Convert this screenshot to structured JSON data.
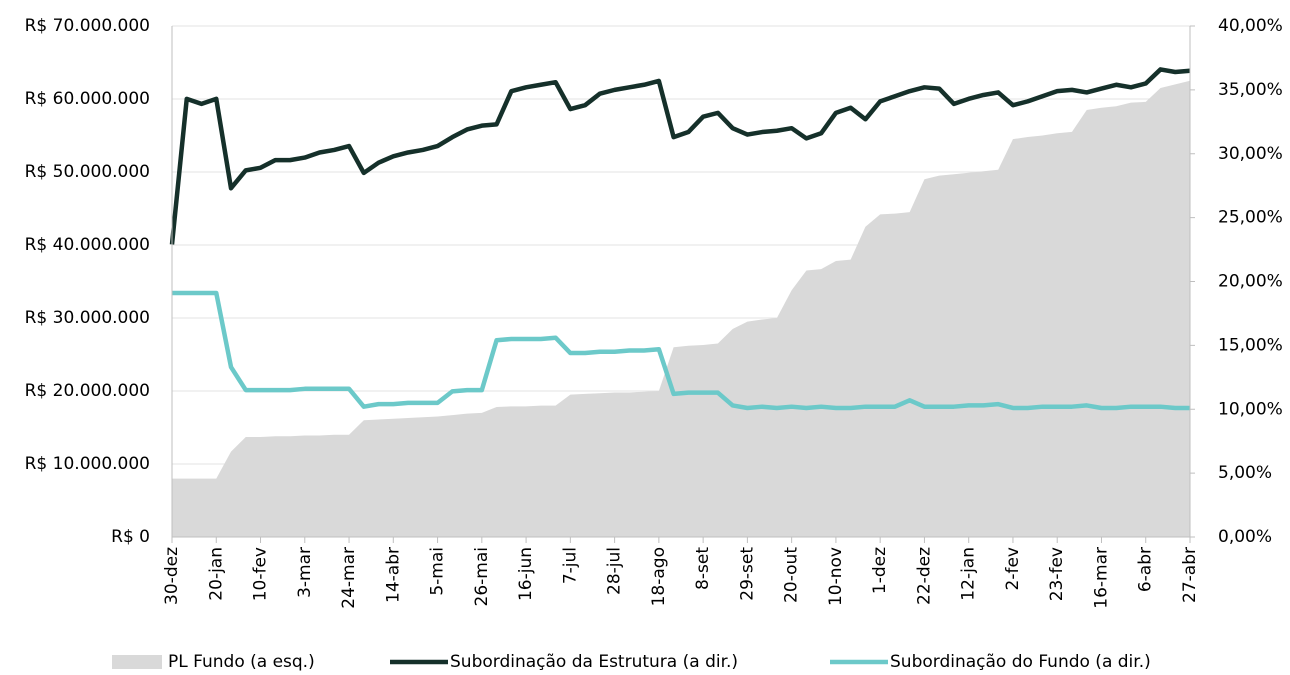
{
  "chart_data": {
    "type": "area-line",
    "categories": [
      "30-dez",
      null,
      null,
      "20-jan",
      null,
      null,
      "10-fev",
      null,
      null,
      "3-mar",
      null,
      null,
      "24-mar",
      null,
      null,
      "14-abr",
      null,
      null,
      "5-mai",
      null,
      null,
      "26-mai",
      null,
      null,
      "16-jun",
      null,
      null,
      "7-jul",
      null,
      null,
      "28-jul",
      null,
      null,
      "18-ago",
      null,
      null,
      "8-set",
      null,
      null,
      "29-set",
      null,
      null,
      "20-out",
      null,
      null,
      "10-nov",
      null,
      null,
      "1-dez",
      null,
      null,
      "22-dez",
      null,
      null,
      "12-jan",
      null,
      null,
      "2-fev",
      null,
      null,
      "23-fev",
      null,
      null,
      "16-mar",
      null,
      null,
      "6-abr",
      null,
      null,
      "27-abr"
    ],
    "series": [
      {
        "name": "PL Fundo (a esq.)",
        "color": "#d9d9d9",
        "kind": "area",
        "axis": "y",
        "values": [
          8000000,
          8000000,
          8000000,
          8000000,
          11700000,
          13700000,
          13700000,
          13800000,
          13800000,
          13900000,
          13900000,
          14000000,
          14000000,
          16000000,
          16100000,
          16200000,
          16300000,
          16400000,
          16500000,
          16700000,
          16900000,
          17000000,
          17800000,
          17900000,
          17900000,
          18000000,
          18000000,
          19500000,
          19600000,
          19700000,
          19800000,
          19800000,
          19900000,
          20000000,
          26000000,
          26200000,
          26300000,
          26500000,
          28500000,
          29500000,
          29800000,
          30000000,
          33800000,
          36500000,
          36700000,
          37800000,
          38000000,
          42500000,
          44200000,
          44300000,
          44500000,
          49000000,
          49500000,
          49700000,
          49900000,
          50100000,
          50300000,
          54500000,
          54800000,
          55000000,
          55300000,
          55500000,
          58500000,
          58800000,
          59000000,
          59500000,
          59600000,
          61500000,
          62000000,
          62500000
        ]
      },
      {
        "name": "Subordinação da Estrutura (a dir.)",
        "color": "#15302a",
        "kind": "line",
        "axis": "y2",
        "values": [
          22.9,
          34.3,
          33.9,
          34.3,
          27.3,
          28.7,
          28.9,
          29.5,
          29.5,
          29.7,
          30.1,
          30.3,
          30.6,
          28.5,
          29.3,
          29.8,
          30.1,
          30.3,
          30.6,
          31.3,
          31.9,
          32.2,
          32.3,
          34.9,
          35.2,
          35.4,
          35.6,
          33.5,
          33.8,
          34.7,
          35.0,
          35.2,
          35.4,
          35.7,
          31.3,
          31.7,
          32.9,
          33.2,
          32.0,
          31.5,
          31.7,
          31.8,
          32.0,
          31.2,
          31.6,
          33.2,
          33.6,
          32.7,
          34.1,
          34.5,
          34.9,
          35.2,
          35.1,
          33.9,
          34.3,
          34.6,
          34.8,
          33.8,
          34.1,
          34.5,
          34.9,
          35.0,
          34.8,
          35.1,
          35.4,
          35.2,
          35.5,
          36.6,
          36.4,
          36.5
        ]
      },
      {
        "name": "Subordinação do Fundo (a dir.)",
        "color": "#6cc9c9",
        "kind": "line",
        "axis": "y2",
        "values": [
          19.1,
          19.1,
          19.1,
          19.1,
          13.3,
          11.5,
          11.5,
          11.5,
          11.5,
          11.6,
          11.6,
          11.6,
          11.6,
          10.2,
          10.4,
          10.4,
          10.5,
          10.5,
          10.5,
          11.4,
          11.5,
          11.5,
          15.4,
          15.5,
          15.5,
          15.5,
          15.6,
          14.4,
          14.4,
          14.5,
          14.5,
          14.6,
          14.6,
          14.7,
          11.2,
          11.3,
          11.3,
          11.3,
          10.3,
          10.1,
          10.2,
          10.1,
          10.2,
          10.1,
          10.2,
          10.1,
          10.1,
          10.2,
          10.2,
          10.2,
          10.7,
          10.2,
          10.2,
          10.2,
          10.3,
          10.3,
          10.4,
          10.1,
          10.1,
          10.2,
          10.2,
          10.2,
          10.3,
          10.1,
          10.1,
          10.2,
          10.2,
          10.2,
          10.1,
          10.1
        ]
      }
    ],
    "ylim": [
      0,
      70000000
    ],
    "yticks": [
      {
        "value": 0,
        "label": "R$ 0"
      },
      {
        "value": 10000000,
        "label": "R$ 10.000.000"
      },
      {
        "value": 20000000,
        "label": "R$ 20.000.000"
      },
      {
        "value": 30000000,
        "label": "R$ 30.000.000"
      },
      {
        "value": 40000000,
        "label": "R$ 40.000.000"
      },
      {
        "value": 50000000,
        "label": "R$ 50.000.000"
      },
      {
        "value": 60000000,
        "label": "R$ 60.000.000"
      },
      {
        "value": 70000000,
        "label": "R$ 70.000.000"
      }
    ],
    "y2lim": [
      0,
      40
    ],
    "y2ticks": [
      {
        "value": 0,
        "label": "0,00%"
      },
      {
        "value": 5,
        "label": "5,00%"
      },
      {
        "value": 10,
        "label": "10,00%"
      },
      {
        "value": 15,
        "label": "15,00%"
      },
      {
        "value": 20,
        "label": "20,00%"
      },
      {
        "value": 25,
        "label": "25,00%"
      },
      {
        "value": 30,
        "label": "30,00%"
      },
      {
        "value": 35,
        "label": "35,00%"
      },
      {
        "value": 40,
        "label": "40,00%"
      }
    ],
    "grid": true,
    "legend": "bottom"
  }
}
